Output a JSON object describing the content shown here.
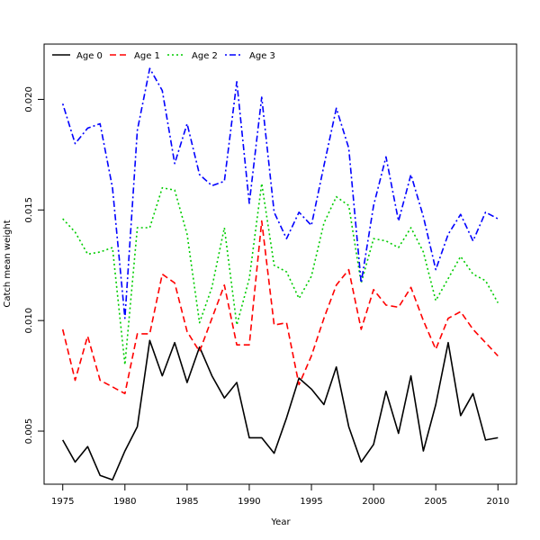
{
  "chart_data": {
    "type": "line",
    "title": "",
    "xlabel": "Year",
    "ylabel": "Catch mean weight",
    "xlim": [
      1973.5,
      2011.5
    ],
    "ylim": [
      0.0026,
      0.0225
    ],
    "xticks": [
      "1975",
      "1980",
      "1985",
      "1990",
      "1995",
      "2000",
      "2005",
      "2010"
    ],
    "yticks": [
      "0.005",
      "0.010",
      "0.015",
      "0.020"
    ],
    "legend_position": "top-left",
    "x": [
      1975,
      1976,
      1977,
      1978,
      1979,
      1980,
      1981,
      1982,
      1983,
      1984,
      1985,
      1986,
      1987,
      1988,
      1989,
      1990,
      1991,
      1992,
      1993,
      1994,
      1995,
      1996,
      1997,
      1998,
      1999,
      2000,
      2001,
      2002,
      2003,
      2004,
      2005,
      2006,
      2007,
      2008,
      2009,
      2010
    ],
    "series": [
      {
        "name": "Age 0",
        "color": "#000000",
        "dash": "solid",
        "values": [
          0.0046,
          0.0036,
          0.0043,
          0.003,
          0.0028,
          0.0041,
          0.0052,
          0.0091,
          0.0075,
          0.009,
          0.0072,
          0.0088,
          0.0075,
          0.0065,
          0.0072,
          0.0047,
          0.0047,
          0.004,
          0.0056,
          0.0074,
          0.0069,
          0.0062,
          0.0079,
          0.0052,
          0.0036,
          0.0044,
          0.0068,
          0.0049,
          0.0075,
          0.0041,
          0.0062,
          0.009,
          0.0057,
          0.0067,
          0.0046,
          0.0047
        ]
      },
      {
        "name": "Age 1",
        "color": "#ff0000",
        "dash": "dashed",
        "values": [
          0.0096,
          0.0073,
          0.0093,
          0.0073,
          0.007,
          0.0067,
          0.0094,
          0.0094,
          0.0121,
          0.0117,
          0.0095,
          0.0086,
          0.0101,
          0.0116,
          0.0089,
          0.0089,
          0.0145,
          0.0098,
          0.0099,
          0.0071,
          0.0084,
          0.0101,
          0.0116,
          0.0123,
          0.0096,
          0.0114,
          0.0107,
          0.0106,
          0.0115,
          0.01,
          0.0087,
          0.0101,
          0.0104,
          0.0096,
          0.009,
          0.0084
        ]
      },
      {
        "name": "Age 2",
        "color": "#00cc00",
        "dash": "dotted",
        "values": [
          0.0146,
          0.014,
          0.013,
          0.0131,
          0.0133,
          0.008,
          0.0142,
          0.0142,
          0.016,
          0.0159,
          0.0139,
          0.0099,
          0.0115,
          0.0142,
          0.0098,
          0.0119,
          0.0162,
          0.0125,
          0.0122,
          0.011,
          0.012,
          0.0144,
          0.0156,
          0.0152,
          0.0117,
          0.0137,
          0.0136,
          0.0133,
          0.0142,
          0.0131,
          0.0109,
          0.0119,
          0.0129,
          0.0121,
          0.0118,
          0.0108
        ]
      },
      {
        "name": "Age 3",
        "color": "#0000ff",
        "dash": "dotdash",
        "values": [
          0.0198,
          0.018,
          0.0187,
          0.0189,
          0.016,
          0.0101,
          0.0186,
          0.0214,
          0.0204,
          0.0171,
          0.0189,
          0.0166,
          0.0161,
          0.0163,
          0.0208,
          0.0153,
          0.0201,
          0.0149,
          0.0137,
          0.0149,
          0.0143,
          0.017,
          0.0196,
          0.0178,
          0.0117,
          0.0152,
          0.0174,
          0.0145,
          0.0166,
          0.0147,
          0.0123,
          0.0139,
          0.0148,
          0.0136,
          0.0149,
          0.0146
        ]
      }
    ]
  }
}
